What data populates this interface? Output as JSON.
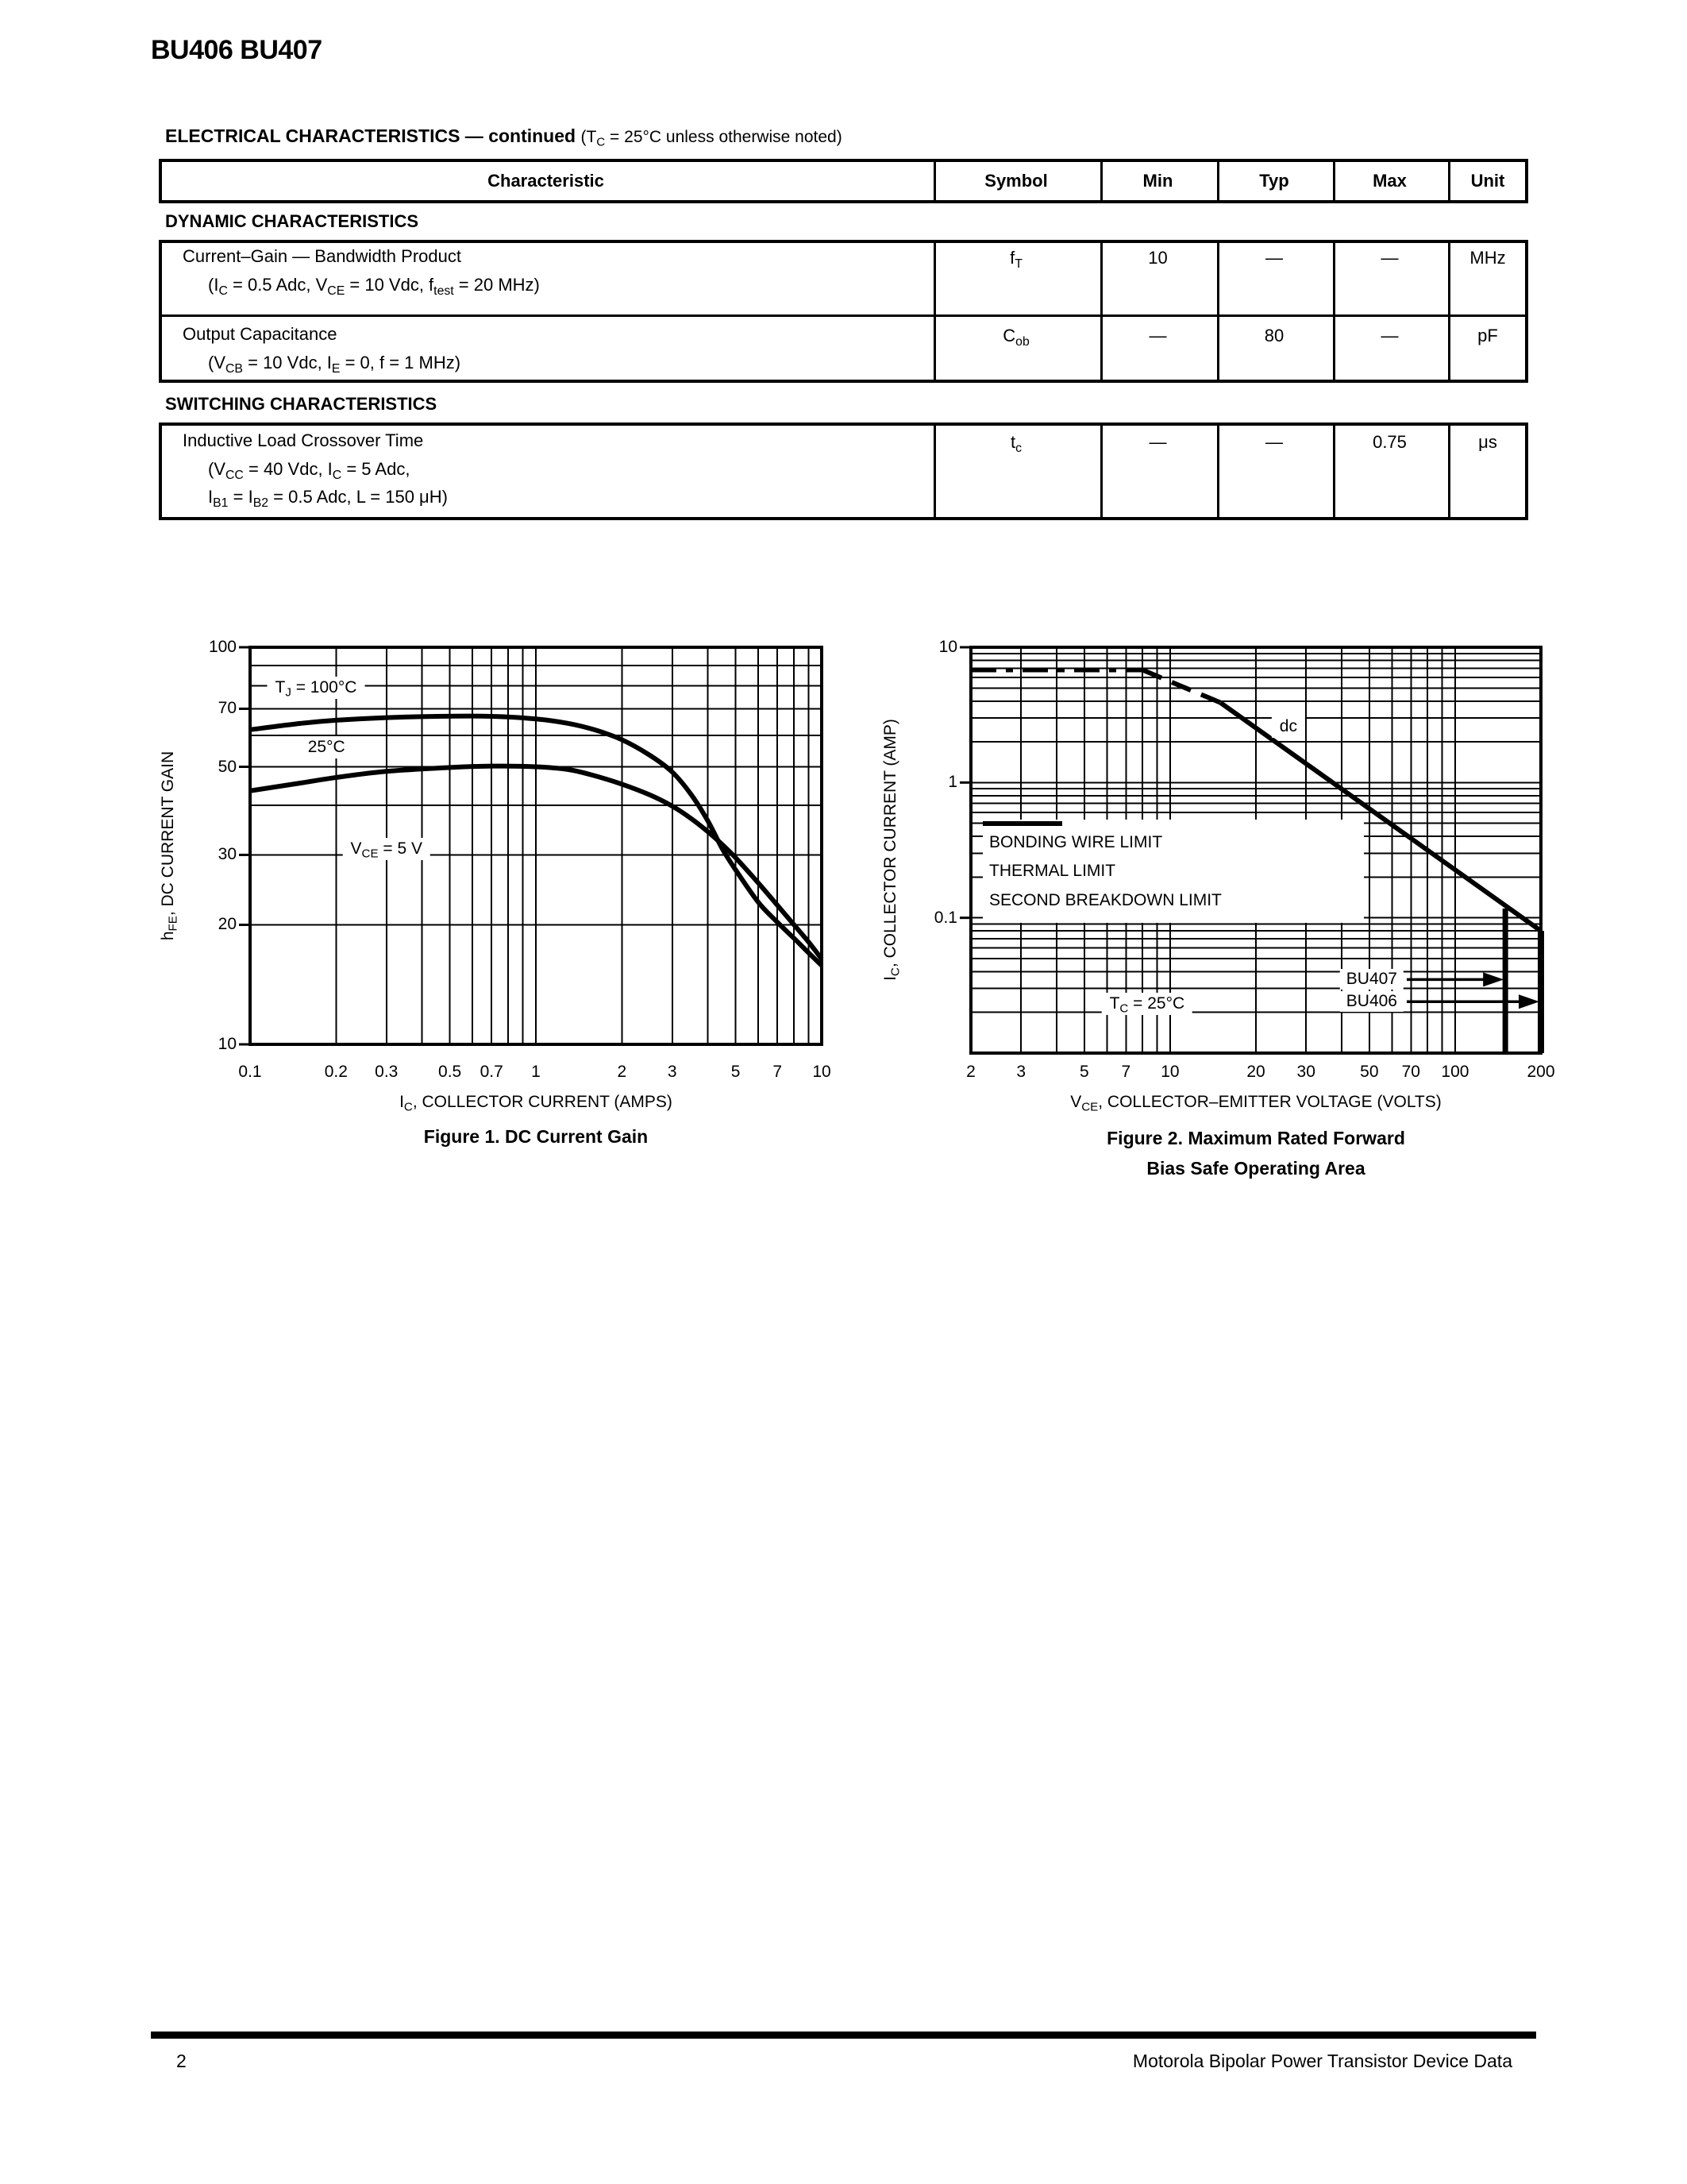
{
  "page": {
    "title": "BU406 BU407",
    "footer_page": "2",
    "footer_text": "Motorola Bipolar Power Transistor Device Data"
  },
  "colors": {
    "ink": "#000000",
    "paper": "#ffffff"
  },
  "electrical": {
    "heading": "ELECTRICAL CHARACTERISTICS — continued",
    "heading_note": "(T~C~ = 25°C unless otherwise noted)",
    "columns": [
      "Characteristic",
      "Symbol",
      "Min",
      "Typ",
      "Max",
      "Unit"
    ],
    "sections": [
      {
        "title": "DYNAMIC CHARACTERISTICS",
        "rows": [
          {
            "characteristic": "Current–Gain — Bandwidth Product",
            "conditions": [
              "(I~C~ = 0.5 Adc, V~CE~ = 10 Vdc, f~test~ = 20 MHz)"
            ],
            "symbol": "f~T~",
            "min": "10",
            "typ": "—",
            "max": "—",
            "unit": "MHz"
          },
          {
            "characteristic": "Output Capacitance",
            "conditions": [
              "(V~CB~ = 10 Vdc, I~E~ = 0, f = 1 MHz)"
            ],
            "symbol": "C~ob~",
            "min": "—",
            "typ": "80",
            "max": "—",
            "unit": "pF"
          }
        ]
      },
      {
        "title": "SWITCHING CHARACTERISTICS",
        "rows": [
          {
            "characteristic": "Inductive Load Crossover Time",
            "conditions": [
              "(V~CC~ = 40 Vdc, I~C~ = 5 Adc,",
              "I~B1~ = I~B2~ = 0.5 Adc, L = 150 μH)"
            ],
            "symbol": "t~c~",
            "min": "—",
            "typ": "—",
            "max": "0.75",
            "unit": "μs"
          }
        ]
      }
    ]
  },
  "chart_data": [
    {
      "id": "figure-1",
      "type": "line",
      "caption_lines": [
        "Figure 1. DC Current Gain"
      ],
      "xlabel": "I~C~, COLLECTOR CURRENT (AMPS)",
      "ylabel": "h~FE~, DC CURRENT GAIN",
      "xscale": "log",
      "yscale": "log",
      "xlim": [
        0.1,
        10
      ],
      "ylim": [
        10,
        100
      ],
      "grid": "log-minor-both",
      "xticks": [
        [
          0.1,
          "0.1"
        ],
        [
          0.2,
          "0.2"
        ],
        [
          0.3,
          "0.3"
        ],
        [
          0.5,
          "0.5"
        ],
        [
          0.7,
          "0.7"
        ],
        [
          1,
          "1"
        ],
        [
          2,
          "2"
        ],
        [
          3,
          "3"
        ],
        [
          5,
          "5"
        ],
        [
          7,
          "7"
        ],
        [
          10,
          "10"
        ]
      ],
      "yticks": [
        [
          10,
          "10"
        ],
        [
          20,
          "20"
        ],
        [
          30,
          "30"
        ],
        [
          50,
          "50"
        ],
        [
          70,
          "70"
        ],
        [
          100,
          "100"
        ]
      ],
      "series": [
        {
          "name": "TJ = 100°C",
          "style": "solid",
          "width": 6,
          "smooth": true,
          "points": [
            [
              0.1,
              62
            ],
            [
              0.15,
              64.3
            ],
            [
              0.2,
              65.5
            ],
            [
              0.3,
              66.5
            ],
            [
              0.45,
              67
            ],
            [
              0.7,
              67
            ],
            [
              1,
              66
            ],
            [
              1.3,
              64.3
            ],
            [
              1.6,
              62
            ],
            [
              2,
              58.5
            ],
            [
              2.5,
              53.5
            ],
            [
              3,
              48.5
            ],
            [
              3.5,
              42.5
            ],
            [
              4,
              36.5
            ],
            [
              4.5,
              31
            ],
            [
              5,
              27.5
            ],
            [
              6,
              22.8
            ],
            [
              7,
              20.3
            ],
            [
              8,
              18.5
            ],
            [
              9,
              17
            ],
            [
              10,
              15.8
            ]
          ]
        },
        {
          "name": "TJ = 25°C",
          "style": "solid",
          "width": 6,
          "smooth": true,
          "points": [
            [
              0.1,
              43.5
            ],
            [
              0.15,
              45.5
            ],
            [
              0.2,
              47
            ],
            [
              0.3,
              48.7
            ],
            [
              0.5,
              49.8
            ],
            [
              0.7,
              50.2
            ],
            [
              1,
              50
            ],
            [
              1.3,
              49.2
            ],
            [
              1.6,
              47.5
            ],
            [
              2,
              45.2
            ],
            [
              2.5,
              42.5
            ],
            [
              3,
              39.8
            ],
            [
              3.5,
              37
            ],
            [
              4,
              34.3
            ],
            [
              4.5,
              31.8
            ],
            [
              5,
              29.5
            ],
            [
              6,
              25.5
            ],
            [
              7,
              22.4
            ],
            [
              8,
              20
            ],
            [
              9,
              18.1
            ],
            [
              10,
              16.4
            ]
          ]
        }
      ],
      "annotations": [
        {
          "text": "T~J~ = 100°C",
          "x": 0.17,
          "y": 79
        },
        {
          "text": "25°C",
          "x": 0.185,
          "y": 56
        },
        {
          "text": "V~CE~ = 5 V",
          "x": 0.3,
          "y": 31
        }
      ]
    },
    {
      "id": "figure-2",
      "type": "line",
      "caption_lines": [
        "Figure 2. Maximum Rated Forward",
        "Bias Safe Operating Area"
      ],
      "xlabel": "V~CE~, COLLECTOR–EMITTER VOLTAGE (VOLTS)",
      "ylabel": "I~C~, COLLECTOR CURRENT (AMP)",
      "xscale": "log",
      "yscale": "log",
      "xlim": [
        2,
        200
      ],
      "ylim": [
        0.01,
        10
      ],
      "grid": "log-minor-both",
      "xticks": [
        [
          2,
          "2"
        ],
        [
          3,
          "3"
        ],
        [
          5,
          "5"
        ],
        [
          7,
          "7"
        ],
        [
          10,
          "10"
        ],
        [
          20,
          "20"
        ],
        [
          30,
          "30"
        ],
        [
          50,
          "50"
        ],
        [
          70,
          "70"
        ],
        [
          100,
          "100"
        ],
        [
          200,
          "200"
        ]
      ],
      "yticks": [
        [
          0.1,
          "0.1"
        ],
        [
          1,
          "1"
        ],
        [
          10,
          "10"
        ]
      ],
      "series": [
        {
          "name": "BONDING WIRE LIMIT",
          "style": "dashdot",
          "width": 6,
          "points": [
            [
              2,
              6.8
            ],
            [
              8,
              6.8
            ]
          ]
        },
        {
          "name": "THERMAL LIMIT",
          "style": "dashed",
          "width": 6,
          "points": [
            [
              8,
              6.8
            ],
            [
              15,
              3.9
            ]
          ]
        },
        {
          "name": "SECOND BREAKDOWN LIMIT",
          "style": "solid",
          "width": 6,
          "points": [
            [
              15,
              3.9
            ],
            [
              200,
              0.08
            ]
          ]
        },
        {
          "name": "BU407 VCE LIMIT",
          "style": "solid",
          "width": 7,
          "points": [
            [
              150,
              0.117
            ],
            [
              150,
              0.01
            ]
          ]
        },
        {
          "name": "BU406 VCE LIMIT",
          "style": "solid",
          "width": 8,
          "points": [
            [
              200,
              0.08
            ],
            [
              200,
              0.01
            ]
          ]
        }
      ],
      "legend": [
        {
          "label": "BONDING WIRE LIMIT",
          "style": "dashdot"
        },
        {
          "label": "THERMAL LIMIT",
          "style": "dashed"
        },
        {
          "label": "SECOND BREAKDOWN LIMIT",
          "style": "solid"
        }
      ],
      "annotations": [
        {
          "text": "dc",
          "x": 26,
          "y": 2.6
        },
        {
          "text": "T~C~ = 25°C",
          "x": 8.3,
          "y": 0.023
        }
      ],
      "callouts": [
        {
          "text": "BU407",
          "y": 0.035,
          "to_x": 150
        },
        {
          "text": "BU406",
          "y": 0.024,
          "to_x": 200
        }
      ]
    }
  ]
}
